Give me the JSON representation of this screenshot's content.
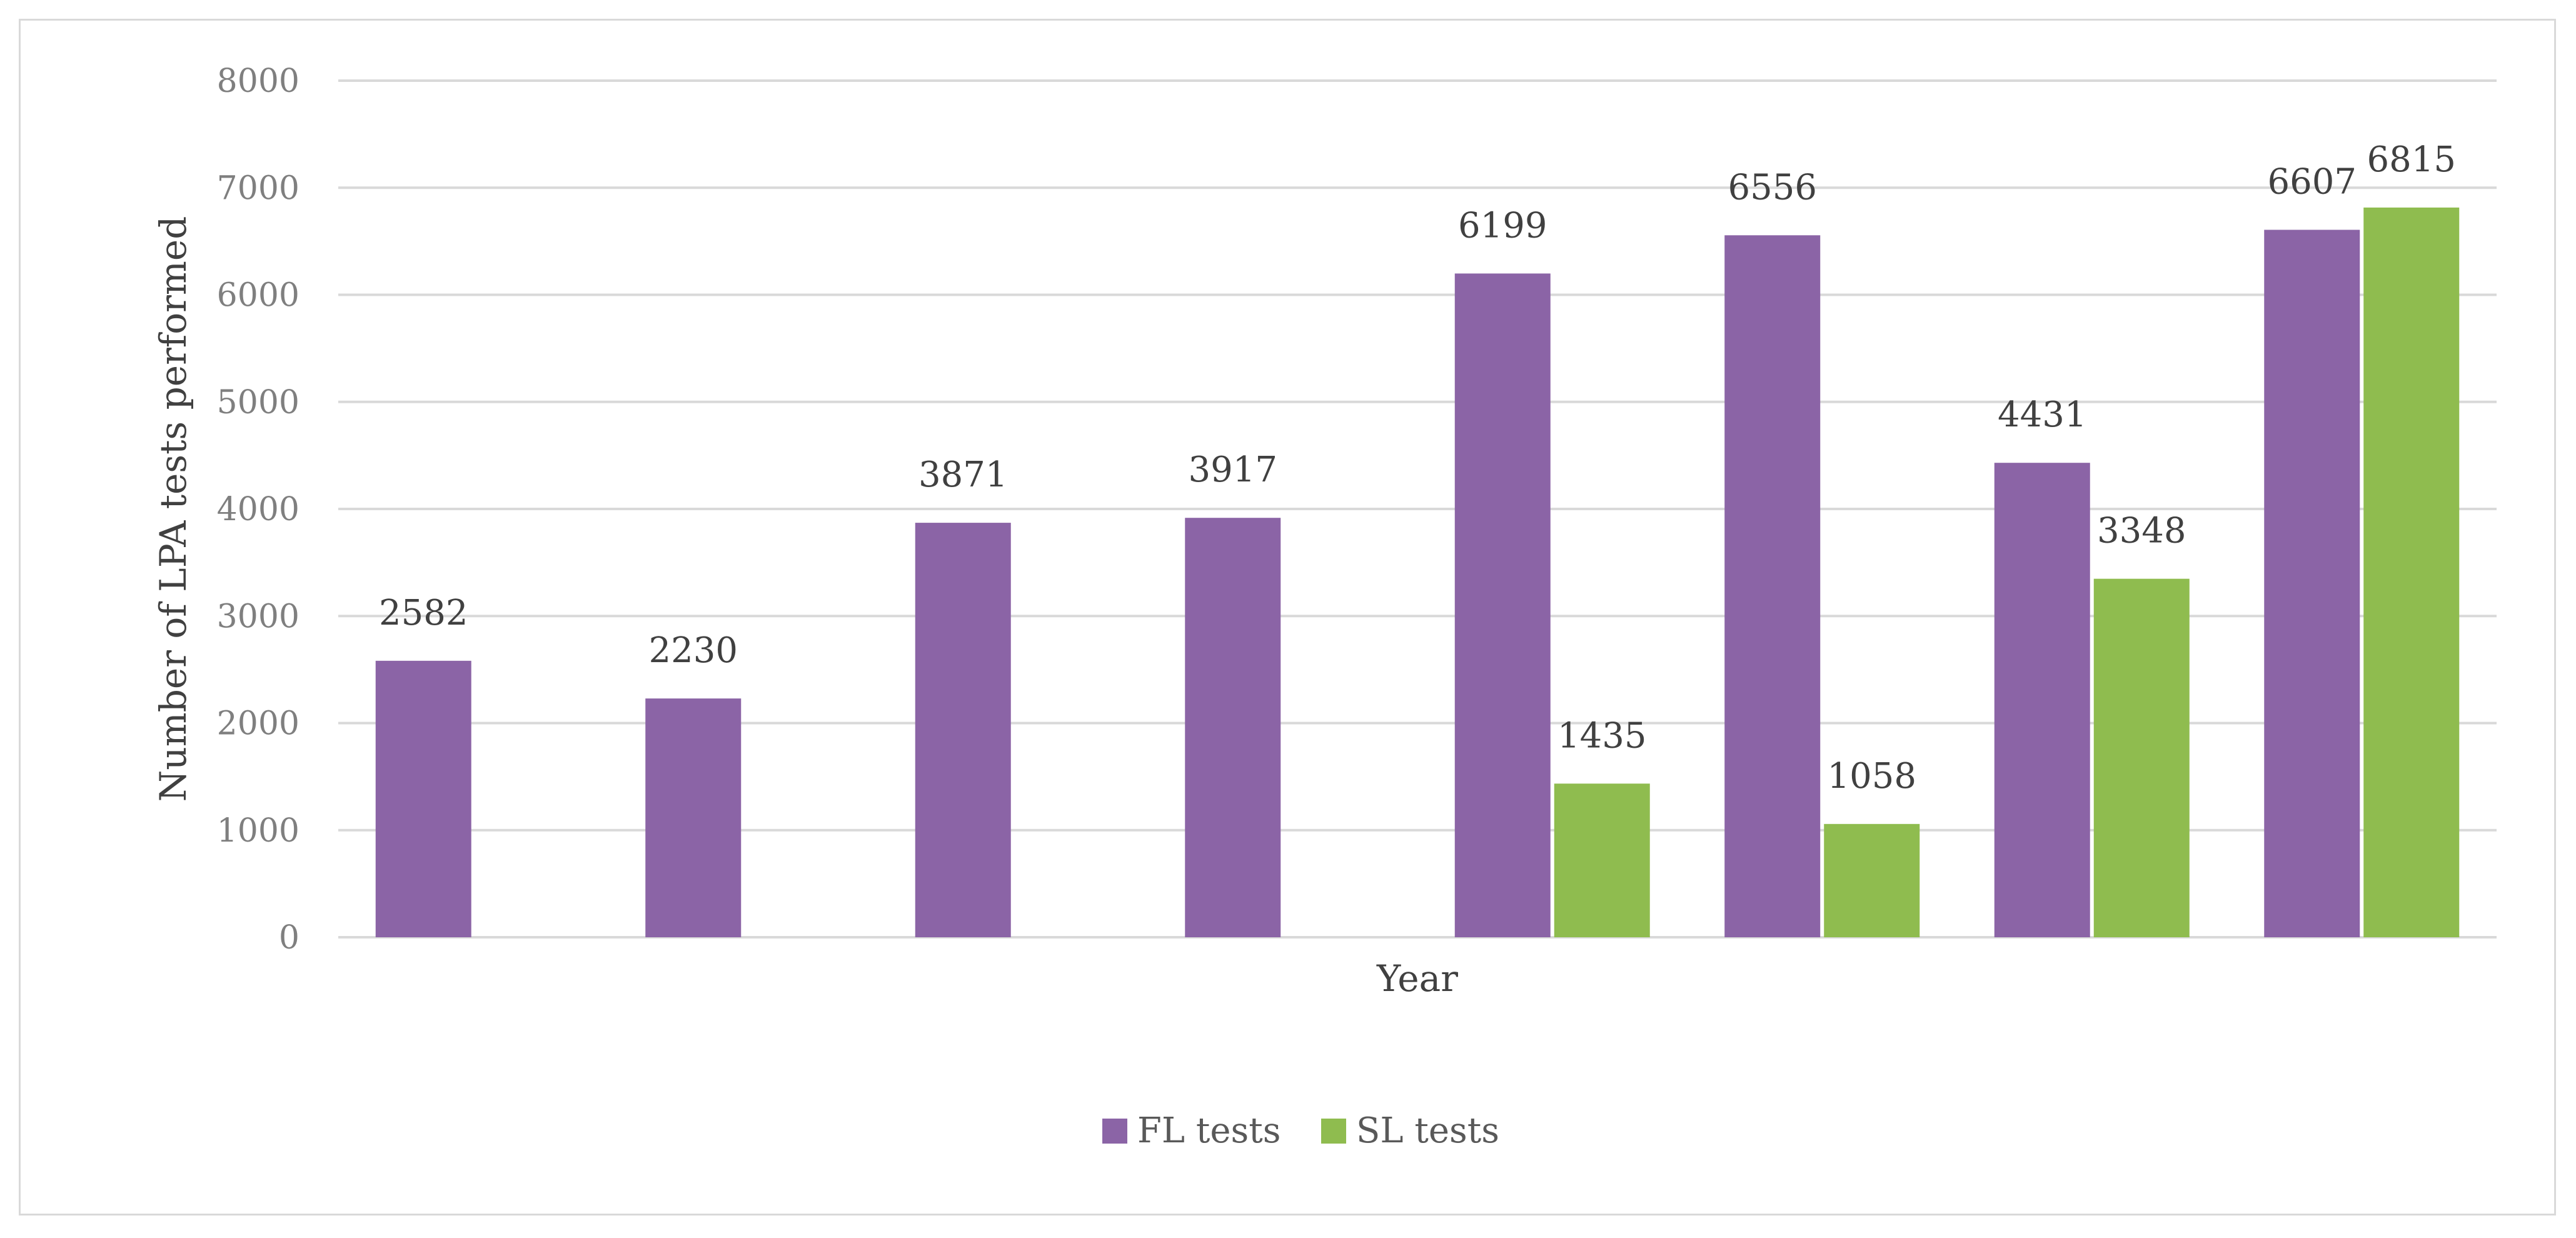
{
  "chart_data": {
    "type": "bar",
    "title": "",
    "xlabel": "Year",
    "ylabel": "Number of LPA tests performed",
    "ylim": [
      0,
      8000
    ],
    "yticks": [
      0,
      1000,
      2000,
      3000,
      4000,
      5000,
      6000,
      7000,
      8000
    ],
    "ytick_labels": [
      "0",
      "1000",
      "2000",
      "3000",
      "4000",
      "5000",
      "6000",
      "7000",
      "8000"
    ],
    "grid": true,
    "legend_position": "bottom-center",
    "categories": [
      "",
      "",
      "",
      "",
      "",
      "",
      "",
      ""
    ],
    "series": [
      {
        "name": "FL tests",
        "color": "#8B64A6",
        "values": [
          2582,
          2230,
          3871,
          3917,
          6199,
          6556,
          4431,
          6607
        ],
        "labels": [
          "2582",
          "2230",
          "3871",
          "3917",
          "6199",
          "6556",
          "4431",
          "6607"
        ]
      },
      {
        "name": "SL tests",
        "color": "#8FBC4F",
        "values": [
          null,
          null,
          null,
          null,
          1435,
          1058,
          3348,
          6815
        ],
        "labels": [
          "",
          "",
          "",
          "",
          "1435",
          "1058",
          "3348",
          "6815"
        ]
      }
    ]
  },
  "colors": {
    "gridline": "#d9d9d9",
    "axis_line": "#d9d9d9"
  }
}
